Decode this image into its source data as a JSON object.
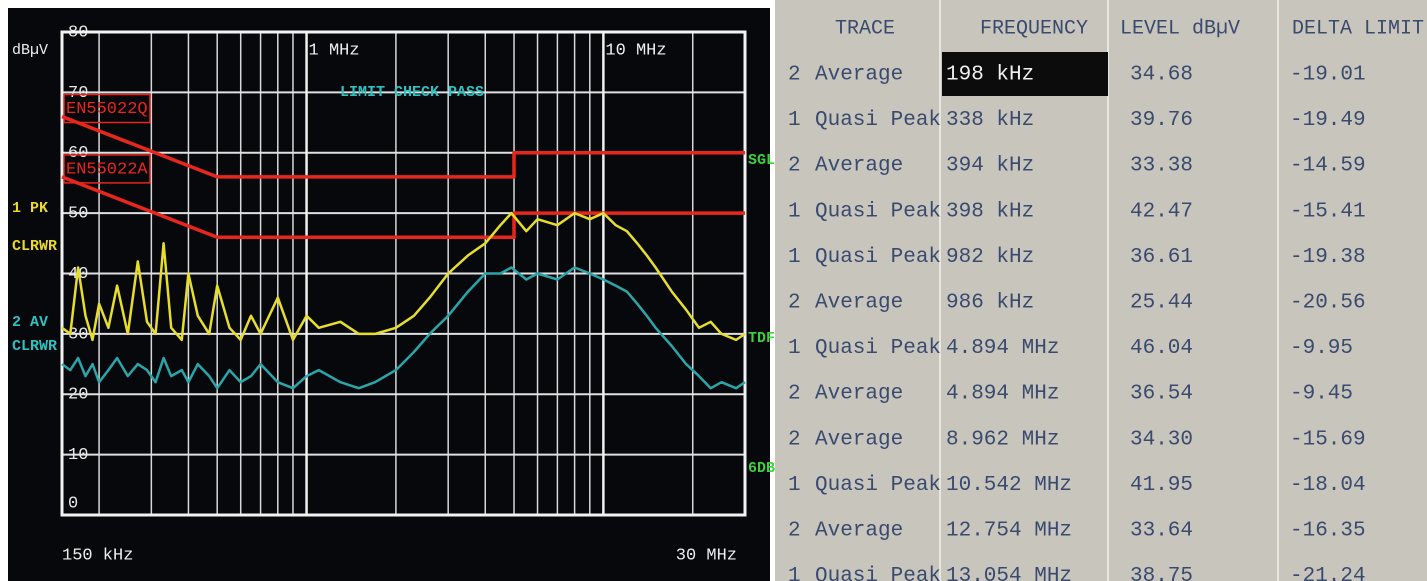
{
  "chart_data": {
    "type": "line",
    "log_x": true,
    "grid": true,
    "y_label": "dBµV",
    "xlim": [
      150,
      30000
    ],
    "ylim": [
      0,
      80
    ],
    "xticks": [
      {
        "value": 150,
        "label": "150 kHz"
      },
      {
        "value": 1000,
        "label": "1 MHz"
      },
      {
        "value": 10000,
        "label": "10 MHz"
      },
      {
        "value": 30000,
        "label": "30 MHz"
      }
    ],
    "yticks": [
      0,
      10,
      20,
      30,
      40,
      50,
      60,
      70,
      80
    ],
    "annotations": [
      "LIMIT CHECK",
      "PASS",
      "1 PK",
      "CLRWR",
      "2 AV",
      "CLRWR",
      "SGL",
      "TDF",
      "6DB"
    ],
    "series": [
      {
        "name": "EN55022Q",
        "color": "#e8261e",
        "x": [
          150,
          500,
          5000,
          5000,
          30000
        ],
        "values": [
          66,
          56,
          56,
          60,
          60
        ]
      },
      {
        "name": "EN55022A",
        "color": "#e8261e",
        "x": [
          150,
          500,
          5000,
          5000,
          30000
        ],
        "values": [
          56,
          46,
          46,
          50,
          50
        ]
      },
      {
        "color": "#2aa5a8",
        "x": [
          150,
          160,
          170,
          180,
          190,
          200,
          215,
          230,
          250,
          270,
          290,
          310,
          330,
          350,
          380,
          400,
          430,
          470,
          500,
          550,
          600,
          650,
          700,
          800,
          900,
          1000,
          1100,
          1300,
          1500,
          1700,
          2000,
          2300,
          2600,
          3000,
          3500,
          4000,
          4500,
          4900,
          5500,
          6000,
          7000,
          8000,
          9000,
          10000,
          11000,
          12000,
          13000,
          14000,
          15000,
          17000,
          19000,
          21000,
          23000,
          25000,
          28000,
          30000
        ],
        "values": [
          25,
          24,
          26,
          23,
          25,
          22,
          24,
          26,
          23,
          25,
          24,
          22,
          26,
          23,
          24,
          22,
          25,
          23,
          21,
          24,
          22,
          23,
          25,
          22,
          21,
          23,
          24,
          22,
          21,
          22,
          24,
          27,
          30,
          33,
          37,
          40,
          40,
          41,
          39,
          40,
          39,
          41,
          40,
          39,
          38,
          37,
          35,
          33,
          31,
          28,
          25,
          23,
          21,
          22,
          21,
          22
        ]
      },
      {
        "color": "#e6dd2c",
        "x": [
          150,
          160,
          170,
          180,
          190,
          200,
          215,
          230,
          250,
          270,
          290,
          310,
          330,
          350,
          380,
          400,
          430,
          470,
          500,
          550,
          600,
          650,
          700,
          800,
          900,
          1000,
          1100,
          1300,
          1500,
          1700,
          2000,
          2300,
          2600,
          3000,
          3500,
          4000,
          4500,
          4900,
          5500,
          6000,
          7000,
          8000,
          9000,
          10000,
          11000,
          12000,
          13000,
          14000,
          15000,
          17000,
          19000,
          21000,
          23000,
          25000,
          28000,
          30000
        ],
        "values": [
          31,
          30,
          41,
          33,
          29,
          35,
          31,
          38,
          30,
          42,
          32,
          30,
          45,
          31,
          29,
          40,
          33,
          30,
          38,
          31,
          29,
          33,
          30,
          36,
          29,
          33,
          31,
          32,
          30,
          30,
          31,
          33,
          36,
          40,
          43,
          45,
          48,
          50,
          47,
          49,
          48,
          50,
          49,
          50,
          48,
          47,
          45,
          43,
          41,
          37,
          34,
          31,
          32,
          30,
          29,
          30
        ]
      }
    ]
  },
  "table": {
    "header": [
      "TRACE",
      "FREQUENCY",
      "LEVEL dBµV",
      "DELTA LIMIT dB"
    ],
    "rows": [
      [
        "2",
        "Average",
        "198 kHz",
        "34.68",
        "-19.01"
      ],
      [
        "1",
        "Quasi Peak",
        "338 kHz",
        "39.76",
        "-19.49"
      ],
      [
        "2",
        "Average",
        "394 kHz",
        "33.38",
        "-14.59"
      ],
      [
        "1",
        "Quasi Peak",
        "398 kHz",
        "42.47",
        "-15.41"
      ],
      [
        "1",
        "Quasi Peak",
        "982 kHz",
        "36.61",
        "-19.38"
      ],
      [
        "2",
        "Average",
        "986 kHz",
        "25.44",
        "-20.56"
      ],
      [
        "1",
        "Quasi Peak",
        "4.894 MHz",
        "46.04",
        "-9.95"
      ],
      [
        "2",
        "Average",
        "4.894 MHz",
        "36.54",
        "-9.45"
      ],
      [
        "2",
        "Average",
        "8.962 MHz",
        "34.30",
        "-15.69"
      ],
      [
        "1",
        "Quasi Peak",
        "10.542 MHz",
        "41.95",
        "-18.04"
      ],
      [
        "2",
        "Average",
        "12.754 MHz",
        "33.64",
        "-16.35"
      ],
      [
        "1",
        "Quasi Peak",
        "13.054 MHz",
        "38.75",
        "-21.24"
      ]
    ]
  }
}
